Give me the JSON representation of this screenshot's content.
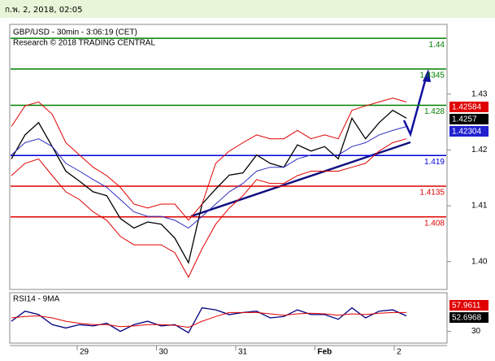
{
  "header": {
    "date": "ก.พ. 2, 2018, 02:05"
  },
  "chart_data": [
    {
      "type": "line",
      "title": "GBP/USD - 30min - 3:06:19 (CET)",
      "subtitle": "Research © 2018 TRADING CENTRAL",
      "time_labels": [
        "29",
        "30",
        "31",
        "Feb",
        "2"
      ],
      "ylim": [
        1.395,
        1.4425
      ],
      "yticks": [
        {
          "value": 1.4,
          "label": "1.40"
        },
        1.41,
        1.42,
        1.43
      ],
      "series": [
        {
          "color": "#000000",
          "values": [
            1.4184,
            1.4227,
            1.4249,
            1.4206,
            1.4162,
            1.4144,
            1.4125,
            1.4118,
            1.4077,
            1.406,
            1.4071,
            1.4067,
            1.4042,
            1.3998,
            1.4103,
            1.413,
            1.4155,
            1.4159,
            1.4191,
            1.4176,
            1.4169,
            1.4209,
            1.4198,
            1.4206,
            1.4184,
            1.4257,
            1.422,
            1.4249,
            1.4271,
            1.4257
          ]
        },
        {
          "color": "#e00000",
          "values": [
            1.4242,
            1.4279,
            1.4286,
            1.4264,
            1.4213,
            1.4191,
            1.4169,
            1.4154,
            1.4133,
            1.4103,
            1.4096,
            1.4103,
            1.4103,
            1.4074,
            1.4103,
            1.4176,
            1.4198,
            1.4213,
            1.4227,
            1.422,
            1.422,
            1.4235,
            1.422,
            1.4227,
            1.422,
            1.4271,
            1.4279,
            1.4286,
            1.4293,
            1.4286
          ]
        },
        {
          "color": "#3030c0",
          "values": [
            1.4191,
            1.4213,
            1.422,
            1.4206,
            1.4176,
            1.4162,
            1.4147,
            1.4133,
            1.4111,
            1.4089,
            1.4081,
            1.4081,
            1.4074,
            1.406,
            1.4081,
            1.4103,
            1.4125,
            1.414,
            1.4162,
            1.4169,
            1.4169,
            1.4184,
            1.4191,
            1.4191,
            1.4191,
            1.4206,
            1.4213,
            1.4227,
            1.4235,
            1.4242
          ]
        },
        {
          "color": "#e00000",
          "values": [
            1.4154,
            1.4176,
            1.4184,
            1.4154,
            1.4125,
            1.4111,
            1.4089,
            1.4074,
            1.4045,
            1.403,
            1.403,
            1.403,
            1.4016,
            1.3972,
            1.4023,
            1.4067,
            1.4096,
            1.4118,
            1.4147,
            1.414,
            1.414,
            1.4154,
            1.4162,
            1.4162,
            1.4162,
            1.4169,
            1.4176,
            1.4198,
            1.4213,
            1.422
          ]
        }
      ],
      "levels": [
        {
          "value": 1.44,
          "color": "#008000"
        },
        {
          "value": 1.4345,
          "color": "#008000"
        },
        {
          "value": 1.428,
          "color": "#008000"
        },
        {
          "value": 1.419,
          "color": "#0000e0"
        },
        {
          "value": 1.4135,
          "color": "#e00000"
        },
        {
          "value": 1.408,
          "color": "#e00000"
        }
      ],
      "price_tags": [
        {
          "value": 1.42584,
          "color": "#e00000"
        },
        {
          "value": 1.4257,
          "color": "#000000"
        },
        {
          "value": 1.42304,
          "color": "#2020d0"
        }
      ]
    },
    {
      "type": "line",
      "title": "RSI14 - 9MA",
      "ylim": [
        15,
        85
      ],
      "yticks": [
        30
      ],
      "series": [
        {
          "color": "#000080",
          "values": [
            45,
            60,
            55,
            40,
            35,
            40,
            38,
            42,
            30,
            40,
            45,
            38,
            40,
            28,
            65,
            62,
            55,
            58,
            60,
            50,
            52,
            62,
            55,
            55,
            48,
            65,
            50,
            60,
            62,
            53
          ]
        },
        {
          "color": "#e00000",
          "values": [
            50,
            52,
            53,
            50,
            45,
            42,
            40,
            40,
            37,
            38,
            40,
            40,
            39,
            36,
            45,
            52,
            58,
            58,
            58,
            56,
            54,
            56,
            57,
            56,
            54,
            56,
            55,
            57,
            58,
            58
          ]
        }
      ],
      "price_tags": [
        {
          "value": 57.9611,
          "color": "#e00000"
        },
        {
          "value": 52.6968,
          "color": "#000000"
        }
      ]
    }
  ]
}
